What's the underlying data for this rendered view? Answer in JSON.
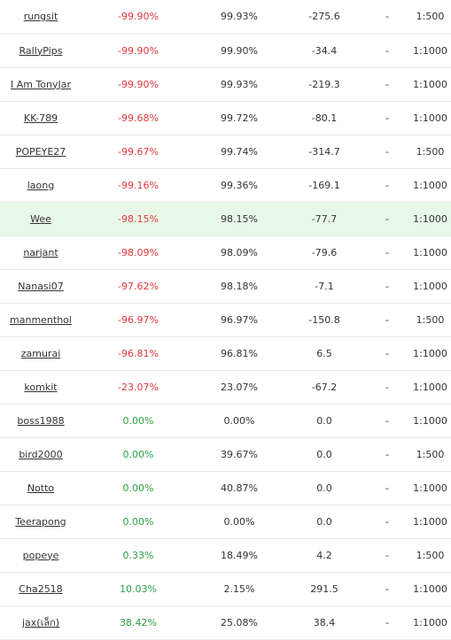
{
  "colors": {
    "negative": "#e0393e",
    "positive": "#2ea043",
    "highlight_row": "#e8f8e8"
  },
  "rows": [
    {
      "name": "rungsit",
      "gain": "-99.90%",
      "gain_sign": "neg",
      "drawdown": "99.93%",
      "pips": "-275.6",
      "dash": "-",
      "leverage": "1:500"
    },
    {
      "name": "RallyPips",
      "gain": "-99.90%",
      "gain_sign": "neg",
      "drawdown": "99.90%",
      "pips": "-34.4",
      "dash": "-",
      "leverage": "1:1000"
    },
    {
      "name": "I Am TonyJar",
      "gain": "-99.90%",
      "gain_sign": "neg",
      "drawdown": "99.93%",
      "pips": "-219.3",
      "dash": "-",
      "leverage": "1:1000"
    },
    {
      "name": "KK-789",
      "gain": "-99.68%",
      "gain_sign": "neg",
      "drawdown": "99.72%",
      "pips": "-80.1",
      "dash": "-",
      "leverage": "1:1000"
    },
    {
      "name": "POPEYE27",
      "gain": "-99.67%",
      "gain_sign": "neg",
      "drawdown": "99.74%",
      "pips": "-314.7",
      "dash": "-",
      "leverage": "1:500"
    },
    {
      "name": "laong",
      "gain": "-99.16%",
      "gain_sign": "neg",
      "drawdown": "99.36%",
      "pips": "-169.1",
      "dash": "-",
      "leverage": "1:1000"
    },
    {
      "name": "Wee",
      "gain": "-98.15%",
      "gain_sign": "neg",
      "drawdown": "98.15%",
      "pips": "-77.7",
      "dash": "-",
      "leverage": "1:1000",
      "highlight": true
    },
    {
      "name": "narjant",
      "gain": "-98.09%",
      "gain_sign": "neg",
      "drawdown": "98.09%",
      "pips": "-79.6",
      "dash": "-",
      "leverage": "1:1000"
    },
    {
      "name": "Nanasi07",
      "gain": "-97.62%",
      "gain_sign": "neg",
      "drawdown": "98.18%",
      "pips": "-7.1",
      "dash": "-",
      "leverage": "1:1000"
    },
    {
      "name": "manmenthol",
      "gain": "-96.97%",
      "gain_sign": "neg",
      "drawdown": "96.97%",
      "pips": "-150.8",
      "dash": "-",
      "leverage": "1:500"
    },
    {
      "name": "zamurai",
      "gain": "-96.81%",
      "gain_sign": "neg",
      "drawdown": "96.81%",
      "pips": "6.5",
      "dash": "-",
      "leverage": "1:1000"
    },
    {
      "name": "komkit",
      "gain": "-23.07%",
      "gain_sign": "neg",
      "drawdown": "23.07%",
      "pips": "-67.2",
      "dash": "-",
      "leverage": "1:1000"
    },
    {
      "name": "boss1988",
      "gain": "0.00%",
      "gain_sign": "pos",
      "drawdown": "0.00%",
      "pips": "0.0",
      "dash": "-",
      "leverage": "1:1000"
    },
    {
      "name": "bird2000",
      "gain": "0.00%",
      "gain_sign": "pos",
      "drawdown": "39.67%",
      "pips": "0.0",
      "dash": "-",
      "leverage": "1:500"
    },
    {
      "name": "Notto",
      "gain": "0.00%",
      "gain_sign": "pos",
      "drawdown": "40.87%",
      "pips": "0.0",
      "dash": "-",
      "leverage": "1:1000"
    },
    {
      "name": "Teerapong",
      "gain": "0.00%",
      "gain_sign": "pos",
      "drawdown": "0.00%",
      "pips": "0.0",
      "dash": "-",
      "leverage": "1:1000"
    },
    {
      "name": "popeye",
      "gain": "0.33%",
      "gain_sign": "pos",
      "drawdown": "18.49%",
      "pips": "4.2",
      "dash": "-",
      "leverage": "1:500"
    },
    {
      "name": "Cha2518",
      "gain": "10.03%",
      "gain_sign": "pos",
      "drawdown": "2.15%",
      "pips": "291.5",
      "dash": "-",
      "leverage": "1:1000"
    },
    {
      "name": "jax(เล็ก)",
      "gain": "38.42%",
      "gain_sign": "pos",
      "drawdown": "25.08%",
      "pips": "38.4",
      "dash": "-",
      "leverage": "1:1000"
    }
  ]
}
